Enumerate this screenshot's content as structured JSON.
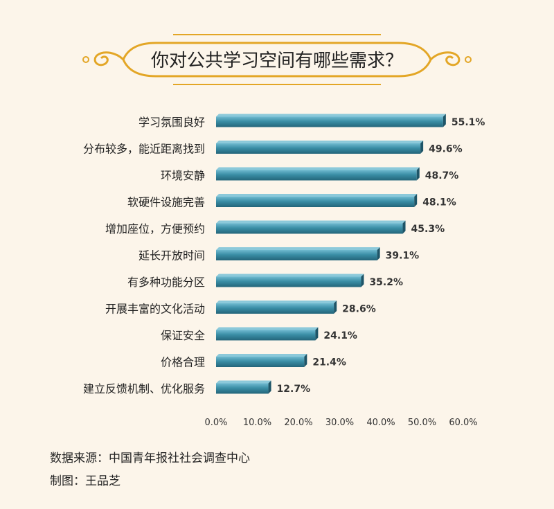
{
  "chart_data": {
    "type": "bar",
    "orientation": "horizontal",
    "title": "你对公共学习空间有哪些需求？",
    "categories": [
      "学习氛围良好",
      "分布较多，能近距离找到",
      "环境安静",
      "软硬件设施完善",
      "增加座位，方便预约",
      "延长开放时间",
      "有多种功能分区",
      "开展丰富的文化活动",
      "保证安全",
      "价格合理",
      "建立反馈机制、优化服务"
    ],
    "values": [
      55.1,
      49.6,
      48.7,
      48.1,
      45.3,
      39.1,
      35.2,
      28.6,
      24.1,
      21.4,
      12.7
    ],
    "value_labels": [
      "55.1%",
      "49.6%",
      "48.7%",
      "48.1%",
      "45.3%",
      "39.1%",
      "35.2%",
      "28.6%",
      "24.1%",
      "21.4%",
      "12.7%"
    ],
    "xlim": [
      0,
      60
    ],
    "xticks": [
      0,
      10,
      20,
      30,
      40,
      50,
      60
    ],
    "xtick_labels": [
      "0.0%",
      "10.0%",
      "20.0%",
      "30.0%",
      "40.0%",
      "50.0%",
      "60.0%"
    ],
    "xlabel": "",
    "ylabel": "",
    "grid": false,
    "legend": "none"
  },
  "footer": {
    "source": "数据来源：中国青年报社社会调查中心",
    "credit": "制图：王品芝"
  },
  "colors": {
    "background": "#fcf5ea",
    "bar_front": "#3a8ea6",
    "bar_side": "#1e5568",
    "banner_gold": "#e3a626",
    "text": "#222222"
  }
}
